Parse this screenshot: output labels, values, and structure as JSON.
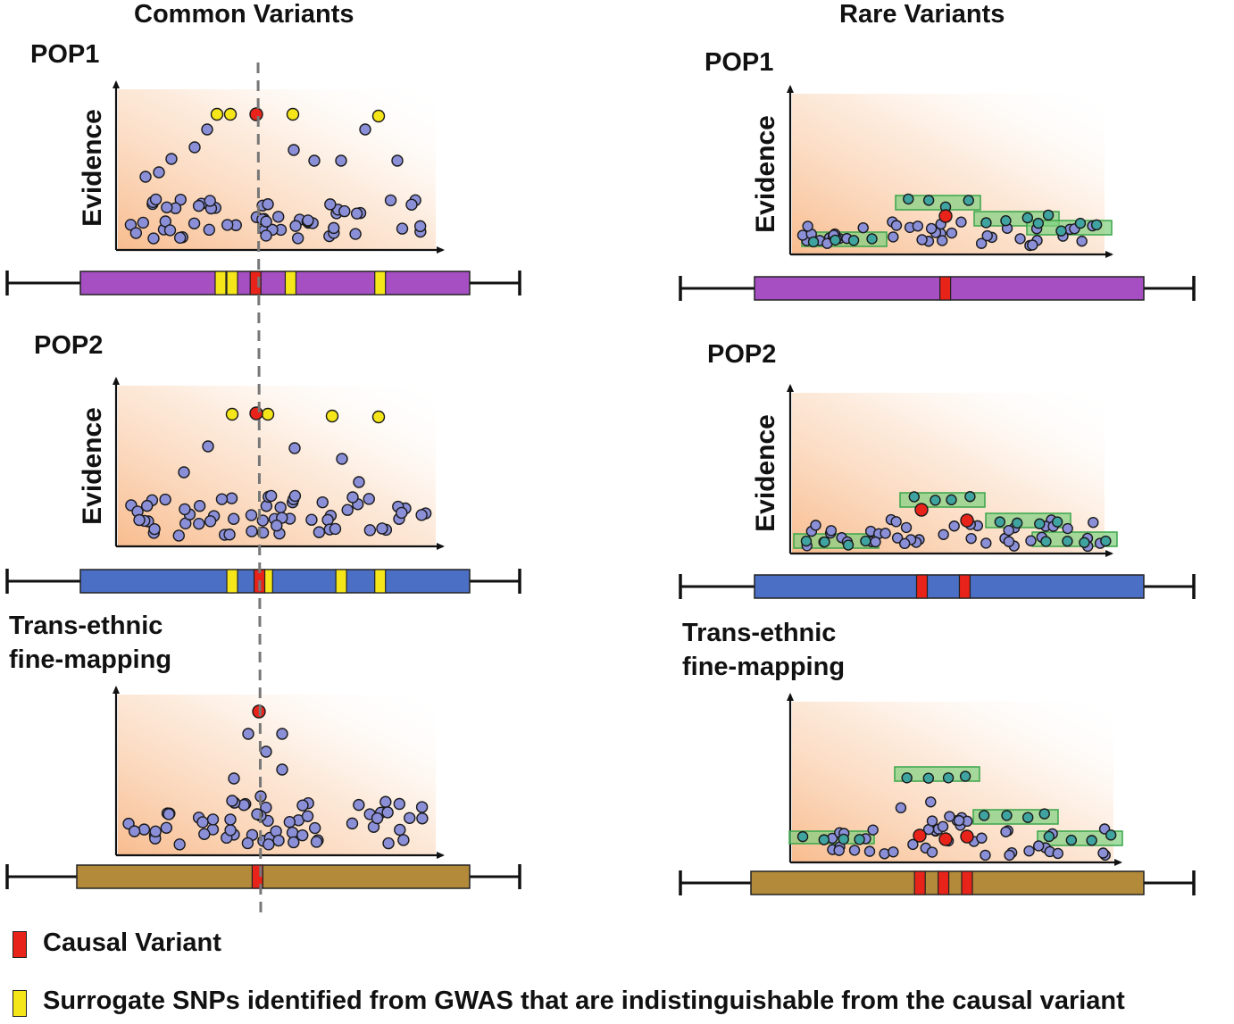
{
  "headers": {
    "common": "Common Variants",
    "rare": "Rare Variants"
  },
  "panel_labels": {
    "pop1": "POP1",
    "pop2": "POP2",
    "trans": "Trans-ethnic\nfine-mapping"
  },
  "axis": {
    "ylabel": "Evidence"
  },
  "legend": {
    "causal": {
      "label": "Causal Variant",
      "color": "#e8231a"
    },
    "surrogate": {
      "label": "Surrogate SNPs identified from GWAS that are indistinguishable from the causal variant",
      "color": "#f5e619"
    }
  },
  "colors": {
    "snp": "#8b8fd8",
    "causal": "#e8231a",
    "surrogate": "#f5e619",
    "rare_snp": "#3fa3a0",
    "block": "#7fd07f",
    "gene_pop1": "#a54fc2",
    "gene_pop2": "#4a6fc4",
    "gene_trans": "#b38a3a",
    "dashed": "#777777"
  },
  "gene_bars": {
    "common_pop1": {
      "color": "gene_pop1",
      "yellow": [
        0.36,
        0.39,
        0.54,
        0.77
      ],
      "red": [
        0.45
      ]
    },
    "common_pop2": {
      "color": "gene_pop2",
      "yellow": [
        0.39,
        0.48,
        0.67,
        0.77
      ],
      "red": [
        0.46
      ]
    },
    "common_trans": {
      "color": "gene_trans",
      "yellow": [],
      "red": [
        0.46
      ]
    },
    "rare_pop1": {
      "color": "gene_pop1",
      "yellow": [],
      "red": [
        0.49
      ]
    },
    "rare_pop2": {
      "color": "gene_pop2",
      "yellow": [],
      "red": [
        0.43,
        0.54
      ]
    },
    "rare_trans": {
      "color": "gene_trans",
      "yellow": [],
      "red": [
        0.43,
        0.49,
        0.55
      ]
    }
  }
}
